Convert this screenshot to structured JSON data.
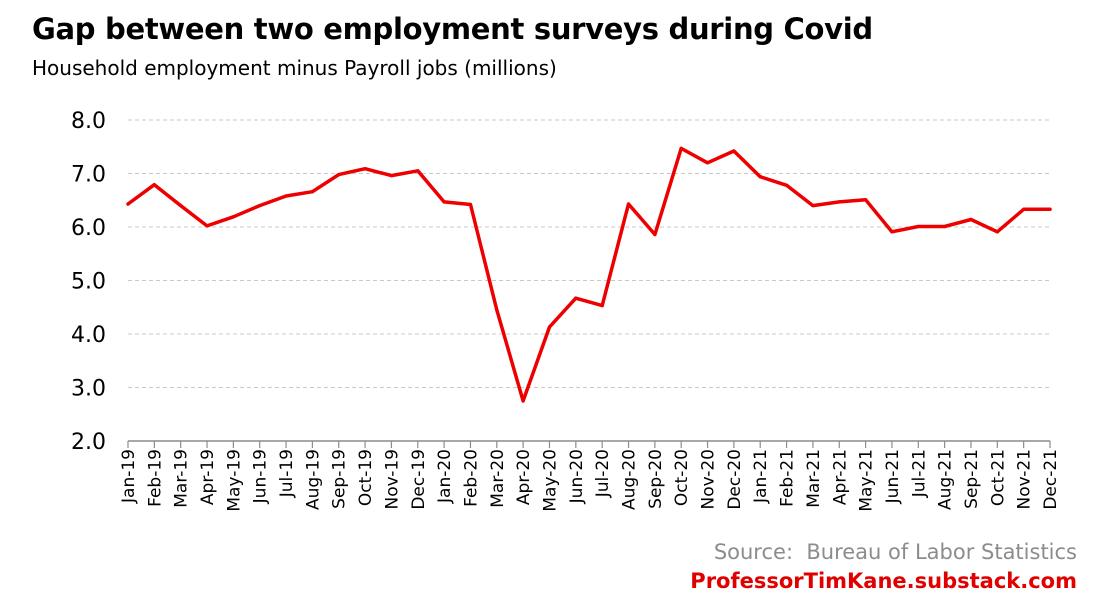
{
  "title": "Gap between two employment surveys during Covid",
  "subtitle": "Household employment minus Payroll jobs (millions)",
  "source": "Source:  Bureau of Labor Statistics",
  "website": "ProfessorTimKane.substack.com",
  "chart_data": {
    "type": "line",
    "title": "Gap between two employment surveys during Covid",
    "subtitle": "Household employment minus Payroll jobs (millions)",
    "xlabel": "",
    "ylabel": "",
    "ylim": [
      2.0,
      8.0
    ],
    "yticks": [
      "2.0",
      "3.0",
      "4.0",
      "5.0",
      "6.0",
      "7.0",
      "8.0"
    ],
    "grid": true,
    "line_color": "#ee0000",
    "categories": [
      "Jan-19",
      "Feb-19",
      "Mar-19",
      "Apr-19",
      "May-19",
      "Jun-19",
      "Jul-19",
      "Aug-19",
      "Sep-19",
      "Oct-19",
      "Nov-19",
      "Dec-19",
      "Jan-20",
      "Feb-20",
      "Mar-20",
      "Apr-20",
      "May-20",
      "Jun-20",
      "Jul-20",
      "Aug-20",
      "Sep-20",
      "Oct-20",
      "Nov-20",
      "Dec-20",
      "Jan-21",
      "Feb-21",
      "Mar-21",
      "Apr-21",
      "May-21",
      "Jun-21",
      "Jul-21",
      "Aug-21",
      "Sep-21",
      "Oct-21",
      "Nov-21",
      "Dec-21"
    ],
    "series": [
      {
        "name": "",
        "values": [
          6.43,
          6.79,
          6.4,
          6.02,
          6.19,
          6.4,
          6.58,
          6.66,
          6.98,
          7.09,
          6.96,
          7.05,
          6.47,
          6.42,
          4.45,
          2.75,
          4.13,
          4.67,
          4.53,
          6.43,
          5.86,
          7.47,
          7.2,
          7.42,
          6.94,
          6.78,
          6.4,
          6.47,
          6.51,
          5.91,
          6.01,
          6.01,
          6.14,
          5.91,
          6.33,
          6.33
        ]
      }
    ]
  }
}
